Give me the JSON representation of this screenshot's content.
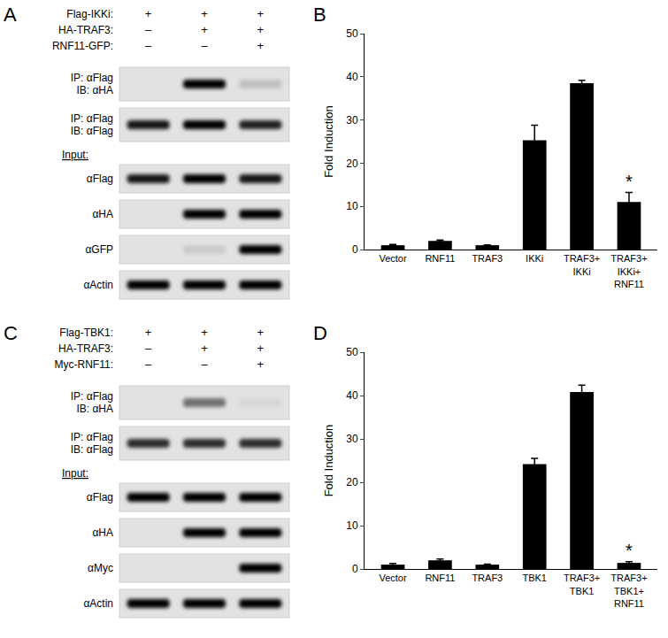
{
  "chart_data": [
    {
      "type": "bar",
      "title": "B",
      "y_label": "Fold Induction",
      "categories": [
        "Vector",
        "RNF11",
        "TRAF3",
        "IKKi",
        "TRAF3+IKKi",
        "TRAF3+IKKi+RNF11"
      ],
      "values": [
        1,
        2,
        1,
        25.3,
        38.5,
        11
      ],
      "errors": [
        0.2,
        0.2,
        0.1,
        3.5,
        0.7,
        2.2
      ],
      "color": "#000000",
      "ylim": [
        0,
        50
      ],
      "yticks": [
        0,
        10,
        20,
        30,
        40,
        50
      ],
      "grid": false,
      "annotations": [
        {
          "text": "*",
          "category": "TRAF3+IKKi+RNF11"
        }
      ]
    },
    {
      "type": "bar",
      "title": "D",
      "y_label": "Fold Induction",
      "categories": [
        "Vector",
        "RNF11",
        "TRAF3",
        "TBK1",
        "TRAF3+TBK1",
        "TRAF3+TBK1+RNF11"
      ],
      "values": [
        1,
        2,
        1,
        24.2,
        40.8,
        1.4
      ],
      "errors": [
        0.3,
        0.3,
        0.1,
        1.3,
        1.6,
        0.3
      ],
      "color": "#000000",
      "ylim": [
        0,
        50
      ],
      "yticks": [
        0,
        10,
        20,
        30,
        40,
        50
      ],
      "grid": false,
      "annotations": [
        {
          "text": "*",
          "category": "TRAF3+TBK1+RNF11"
        }
      ]
    }
  ],
  "blots": [
    {
      "title": "A",
      "header": [
        {
          "label": "Flag-IKKi:",
          "lanes": [
            "+",
            "+",
            "+"
          ]
        },
        {
          "label": "HA-TRAF3:",
          "lanes": [
            "–",
            "+",
            "+"
          ]
        },
        {
          "label": "RNF11-GFP:",
          "lanes": [
            "–",
            "–",
            "+"
          ]
        }
      ],
      "rows": [
        {
          "label": [
            "IP: αFlag",
            "IB: αHA"
          ],
          "bands": [
            0,
            1,
            0.15
          ]
        },
        {
          "label": [
            "IP: αFlag",
            "IB: αFlag"
          ],
          "bands": [
            0.9,
            1,
            0.85
          ]
        },
        {
          "section": "Input:"
        },
        {
          "label": [
            "αFlag"
          ],
          "bands": [
            0.9,
            1,
            0.9
          ]
        },
        {
          "label": [
            "αHA"
          ],
          "bands": [
            0,
            1,
            1
          ]
        },
        {
          "label": [
            "αGFP"
          ],
          "bands": [
            0,
            0.1,
            1
          ]
        },
        {
          "label": [
            "αActin"
          ],
          "bands": [
            1,
            1,
            1
          ]
        }
      ]
    },
    {
      "title": "C",
      "header": [
        {
          "label": "Flag-TBK1:",
          "lanes": [
            "+",
            "+",
            "+"
          ]
        },
        {
          "label": "HA-TRAF3:",
          "lanes": [
            "–",
            "+",
            "+"
          ]
        },
        {
          "label": "Myc-RNF11:",
          "lanes": [
            "–",
            "–",
            "+"
          ]
        }
      ],
      "rows": [
        {
          "label": [
            "IP: αFlag",
            "IB: αHA"
          ],
          "bands": [
            0,
            0.5,
            0.05
          ]
        },
        {
          "label": [
            "IP: αFlag",
            "IB: αFlag"
          ],
          "bands": [
            0.8,
            0.8,
            0.8
          ]
        },
        {
          "section": "Input:"
        },
        {
          "label": [
            "αFlag"
          ],
          "bands": [
            1,
            1,
            1
          ]
        },
        {
          "label": [
            "αHA"
          ],
          "bands": [
            0,
            1,
            1
          ]
        },
        {
          "label": [
            "αMyc"
          ],
          "bands": [
            0,
            0,
            1
          ]
        },
        {
          "label": [
            "αActin"
          ],
          "bands": [
            1,
            1,
            1
          ]
        }
      ]
    }
  ]
}
